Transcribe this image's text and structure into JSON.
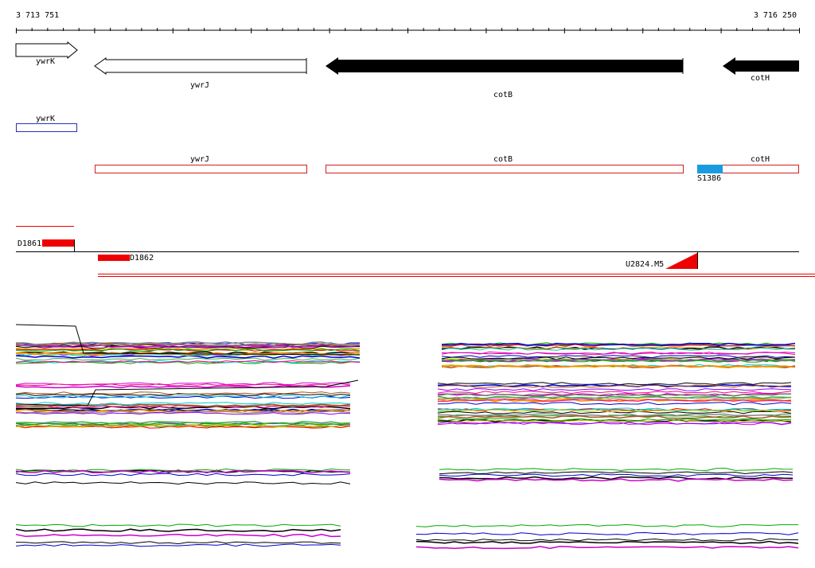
{
  "ruler": {
    "start": "3 713 751",
    "end": "3 716 250"
  },
  "genes": [
    {
      "label": "ywrK"
    },
    {
      "label": "ywrJ"
    },
    {
      "label": "cotB"
    },
    {
      "label": "cotH"
    }
  ],
  "annotations": [
    {
      "label": "ywrK"
    },
    {
      "label": "ywrJ"
    },
    {
      "label": "cotB"
    },
    {
      "label": "cotH"
    },
    {
      "label": "S1386"
    }
  ],
  "probes": [
    {
      "label": "D1861"
    },
    {
      "label": "D1862"
    },
    {
      "label": "U2824.M5"
    }
  ]
}
